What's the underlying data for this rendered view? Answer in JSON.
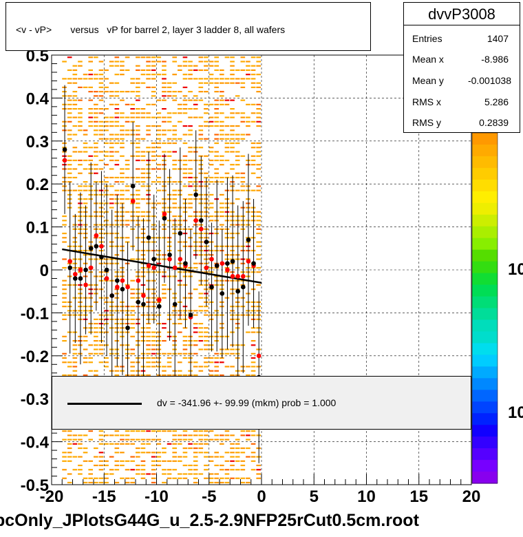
{
  "title": "<v - vP>       versus   vP for barrel 2, layer 3 ladder 8, all wafers",
  "stats": {
    "name": "dvvP3008",
    "rows": [
      {
        "key": "Entries",
        "value": "1407"
      },
      {
        "key": "Mean x",
        "value": "-8.986"
      },
      {
        "key": "Mean y",
        "value": "-0.001038"
      },
      {
        "key": "RMS x",
        "value": "5.286"
      },
      {
        "key": "RMS y",
        "value": "0.2839"
      }
    ]
  },
  "legend": {
    "fit_label": "dv = -341.96 +- 99.99 (mkm) prob = 1.000"
  },
  "filename": "pcOnly_JPlotsG44G_u_2.5-2.9NFP25rCut0.5cm.root",
  "palette": {
    "labels": [
      "10",
      "10"
    ]
  },
  "chart_data": {
    "type": "scatter",
    "title": "<v - vP>       versus   vP for barrel 2, layer 3 ladder 8, all wafers",
    "xlim": [
      -20,
      20
    ],
    "ylim": [
      -0.5,
      0.5
    ],
    "x_ticks": [
      "-20",
      "-15",
      "-10",
      "-5",
      "0",
      "5",
      "10",
      "15",
      "20"
    ],
    "y_ticks": [
      "-0.5",
      "-0.4",
      "-0.3",
      "-0.2",
      "-0.1",
      "0",
      "0.1",
      "0.2",
      "0.3",
      "0.4",
      "0.5"
    ],
    "grid": true,
    "background_2d_histogram": {
      "x_range": [
        -19,
        0
      ],
      "y_range": [
        -0.5,
        0.5
      ],
      "colors": [
        "#ff9900",
        "#ffaa00",
        "#ff6600",
        "#ee0000"
      ]
    },
    "fit_line": {
      "x": [
        -19,
        0
      ],
      "y": [
        0.048,
        -0.03
      ],
      "color": "#000000"
    },
    "series": [
      {
        "color": "#000000",
        "points": [
          {
            "x": -18.75,
            "y": 0.28,
            "err": 0.15
          },
          {
            "x": -18.25,
            "y": 0.005,
            "err": 0.2
          },
          {
            "x": -17.75,
            "y": -0.02,
            "err": 0.15
          },
          {
            "x": -17.25,
            "y": -0.02,
            "err": 0.2
          },
          {
            "x": -16.75,
            "y": 0.0,
            "err": 0.15
          },
          {
            "x": -16.25,
            "y": 0.05,
            "err": 0.2
          },
          {
            "x": -15.75,
            "y": 0.055,
            "err": 0.15
          },
          {
            "x": -15.25,
            "y": 0.03,
            "err": 0.2
          },
          {
            "x": -14.75,
            "y": 0.0,
            "err": 0.2
          },
          {
            "x": -14.25,
            "y": -0.06,
            "err": 0.2
          },
          {
            "x": -13.75,
            "y": -0.025,
            "err": 0.2
          },
          {
            "x": -13.25,
            "y": -0.045,
            "err": 0.2
          },
          {
            "x": -12.75,
            "y": -0.135,
            "err": 0.2
          },
          {
            "x": -12.25,
            "y": 0.195,
            "err": 0.15
          },
          {
            "x": -11.75,
            "y": -0.075,
            "err": 0.2
          },
          {
            "x": -11.25,
            "y": -0.08,
            "err": 0.2
          },
          {
            "x": -10.75,
            "y": 0.075,
            "err": 0.2
          },
          {
            "x": -10.25,
            "y": 0.025,
            "err": 0.15
          },
          {
            "x": -9.75,
            "y": -0.085,
            "err": 0.2
          },
          {
            "x": -9.25,
            "y": 0.12,
            "err": 0.15
          },
          {
            "x": -8.75,
            "y": 0.035,
            "err": 0.2
          },
          {
            "x": -8.25,
            "y": -0.08,
            "err": 0.2
          },
          {
            "x": -7.75,
            "y": 0.085,
            "err": 0.2
          },
          {
            "x": -7.25,
            "y": 0.015,
            "err": 0.15
          },
          {
            "x": -6.75,
            "y": -0.105,
            "err": 0.2
          },
          {
            "x": -6.25,
            "y": 0.175,
            "err": 0.15
          },
          {
            "x": -5.75,
            "y": 0.115,
            "err": 0.15
          },
          {
            "x": -5.25,
            "y": 0.065,
            "err": 0.15
          },
          {
            "x": -4.75,
            "y": -0.04,
            "err": 0.15
          },
          {
            "x": -4.25,
            "y": 0.01,
            "err": 0.2
          },
          {
            "x": -3.75,
            "y": -0.055,
            "err": 0.15
          },
          {
            "x": -3.25,
            "y": 0.015,
            "err": 0.2
          },
          {
            "x": -2.75,
            "y": 0.02,
            "err": 0.2
          },
          {
            "x": -2.25,
            "y": -0.05,
            "err": 0.2
          },
          {
            "x": -1.75,
            "y": -0.04,
            "err": 0.2
          },
          {
            "x": -1.25,
            "y": 0.07,
            "err": 0.2
          },
          {
            "x": -0.75,
            "y": 0.015,
            "err": 0.15
          },
          {
            "x": -0.25,
            "y": -0.25,
            "err": 0.2
          }
        ]
      },
      {
        "color": "#ff0000",
        "points": [
          {
            "x": -18.75,
            "y": 0.255
          },
          {
            "x": -18.25,
            "y": 0.02
          },
          {
            "x": -17.75,
            "y": -0.01
          },
          {
            "x": -17.25,
            "y": 0.0
          },
          {
            "x": -16.75,
            "y": -0.035
          },
          {
            "x": -16.25,
            "y": 0.005
          },
          {
            "x": -15.75,
            "y": 0.08
          },
          {
            "x": -15.25,
            "y": 0.055
          },
          {
            "x": -14.75,
            "y": -0.02
          },
          {
            "x": -14.25,
            "y": -0.06
          },
          {
            "x": -13.75,
            "y": -0.04
          },
          {
            "x": -13.25,
            "y": -0.025
          },
          {
            "x": -12.75,
            "y": -0.04
          },
          {
            "x": -12.25,
            "y": 0.16
          },
          {
            "x": -11.75,
            "y": -0.025
          },
          {
            "x": -11.25,
            "y": -0.06
          },
          {
            "x": -10.75,
            "y": 0.01
          },
          {
            "x": -10.25,
            "y": 0.005
          },
          {
            "x": -9.75,
            "y": -0.07
          },
          {
            "x": -9.25,
            "y": 0.13
          },
          {
            "x": -8.75,
            "y": 0.025
          },
          {
            "x": -8.25,
            "y": 0.005
          },
          {
            "x": -7.75,
            "y": 0.025
          },
          {
            "x": -7.25,
            "y": 0.01
          },
          {
            "x": -6.75,
            "y": -0.11
          },
          {
            "x": -6.25,
            "y": 0.115
          },
          {
            "x": -5.75,
            "y": 0.095
          },
          {
            "x": -5.25,
            "y": 0.005
          },
          {
            "x": -4.75,
            "y": 0.025
          },
          {
            "x": -4.25,
            "y": 0.01
          },
          {
            "x": -3.75,
            "y": 0.015
          },
          {
            "x": -3.25,
            "y": 0.0
          },
          {
            "x": -2.75,
            "y": -0.015
          },
          {
            "x": -2.25,
            "y": -0.015
          },
          {
            "x": -1.75,
            "y": -0.015
          },
          {
            "x": -1.25,
            "y": 0.02
          },
          {
            "x": -0.75,
            "y": 0.01
          },
          {
            "x": -0.25,
            "y": -0.2
          }
        ]
      }
    ]
  }
}
